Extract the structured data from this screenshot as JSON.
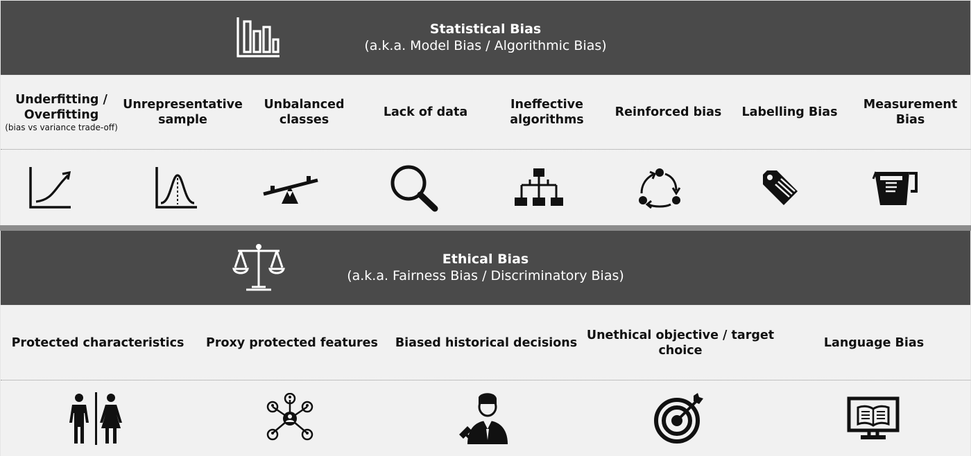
{
  "statistical": {
    "title": "Statistical Bias",
    "subtitle": "(a.k.a. Model Bias / Algorithmic Bias)",
    "header_icon": "bar-chart-icon",
    "items": [
      {
        "label_lines": [
          "Underfitting /",
          "Overfitting"
        ],
        "note": "(bias vs variance trade-off)",
        "icon": "growth-curve-icon"
      },
      {
        "label_lines": [
          "Unrepresentative",
          "sample"
        ],
        "icon": "bell-curve-icon"
      },
      {
        "label_lines": [
          "Unbalanced",
          "classes"
        ],
        "icon": "seesaw-icon"
      },
      {
        "label_lines": [
          "Lack of data"
        ],
        "icon": "magnifier-icon"
      },
      {
        "label_lines": [
          "Ineffective",
          "algorithms"
        ],
        "icon": "hierarchy-icon"
      },
      {
        "label_lines": [
          "Reinforced bias"
        ],
        "icon": "cycle-arrows-icon"
      },
      {
        "label_lines": [
          "Labelling Bias"
        ],
        "icon": "price-tag-icon"
      },
      {
        "label_lines": [
          "Measurement",
          "Bias"
        ],
        "icon": "measuring-jug-icon"
      }
    ]
  },
  "ethical": {
    "title": "Ethical Bias",
    "subtitle": "(a.k.a. Fairness Bias / Discriminatory Bias)",
    "header_icon": "scales-icon",
    "items": [
      {
        "label_lines": [
          "Protected characteristics"
        ],
        "icon": "man-woman-icon"
      },
      {
        "label_lines": [
          "Proxy protected features"
        ],
        "icon": "network-people-icon"
      },
      {
        "label_lines": [
          "Biased historical decisions"
        ],
        "icon": "judge-icon"
      },
      {
        "label_lines": [
          "Unethical objective / target",
          "choice"
        ],
        "icon": "target-icon"
      },
      {
        "label_lines": [
          "Language Bias"
        ],
        "icon": "book-monitor-icon"
      }
    ]
  }
}
